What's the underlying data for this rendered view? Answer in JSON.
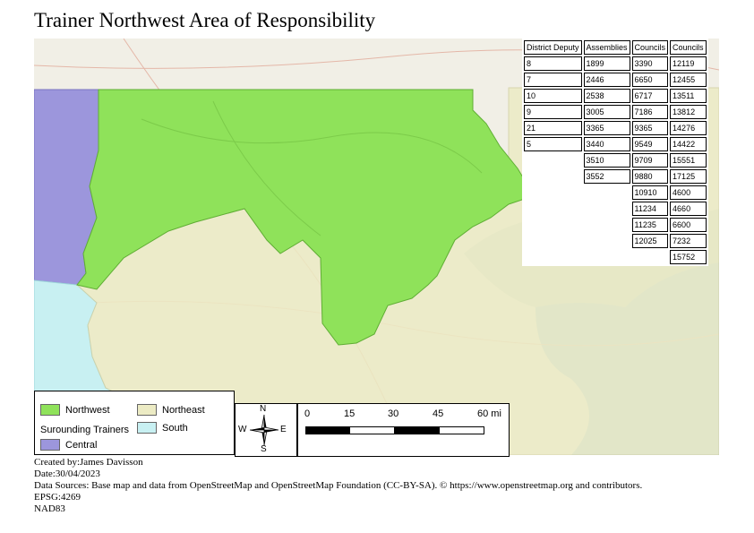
{
  "title": "Trainer Northwest Area of Responsibility",
  "table": {
    "headers": [
      "District Deputy",
      "Assemblies",
      "Councils",
      "Councils"
    ],
    "district_deputy": [
      "8",
      "7",
      "10",
      "9",
      "21",
      "5"
    ],
    "assemblies": [
      "1899",
      "2446",
      "2538",
      "3005",
      "3365",
      "3440",
      "3510",
      "3552"
    ],
    "councils_1": [
      "3390",
      "6650",
      "6717",
      "7186",
      "9365",
      "9549",
      "9709",
      "9880",
      "10910",
      "11234",
      "11235",
      "12025"
    ],
    "councils_2": [
      "12119",
      "12455",
      "13511",
      "13812",
      "14276",
      "14422",
      "15551",
      "17125",
      "4600",
      "4660",
      "6600",
      "7232",
      "15752"
    ]
  },
  "legend": {
    "northwest": "Northwest",
    "northeast": "Northeast",
    "surrounding_heading": "Surounding Trainers",
    "south": "South",
    "central": "Central",
    "colors": {
      "northwest": "#8fe25a",
      "northeast": "#ecebc4",
      "south": "#c8f0f2",
      "central": "#9c96dc"
    }
  },
  "north_arrow": {
    "n": "N",
    "s": "S",
    "e": "E",
    "w": "W"
  },
  "scale": {
    "labels": [
      "0",
      "15",
      "30",
      "45",
      "60 mi"
    ]
  },
  "credits": {
    "created_by": "Created by:James Davisson",
    "date": "Date:30/04/2023",
    "sources": "Data Sources:  Base map and data from OpenStreetMap and OpenStreetMap Foundation (CC-BY-SA). © https://www.openstreetmap.org and contributors.",
    "epsg": "EPSG:4269",
    "datum": "NAD83"
  }
}
